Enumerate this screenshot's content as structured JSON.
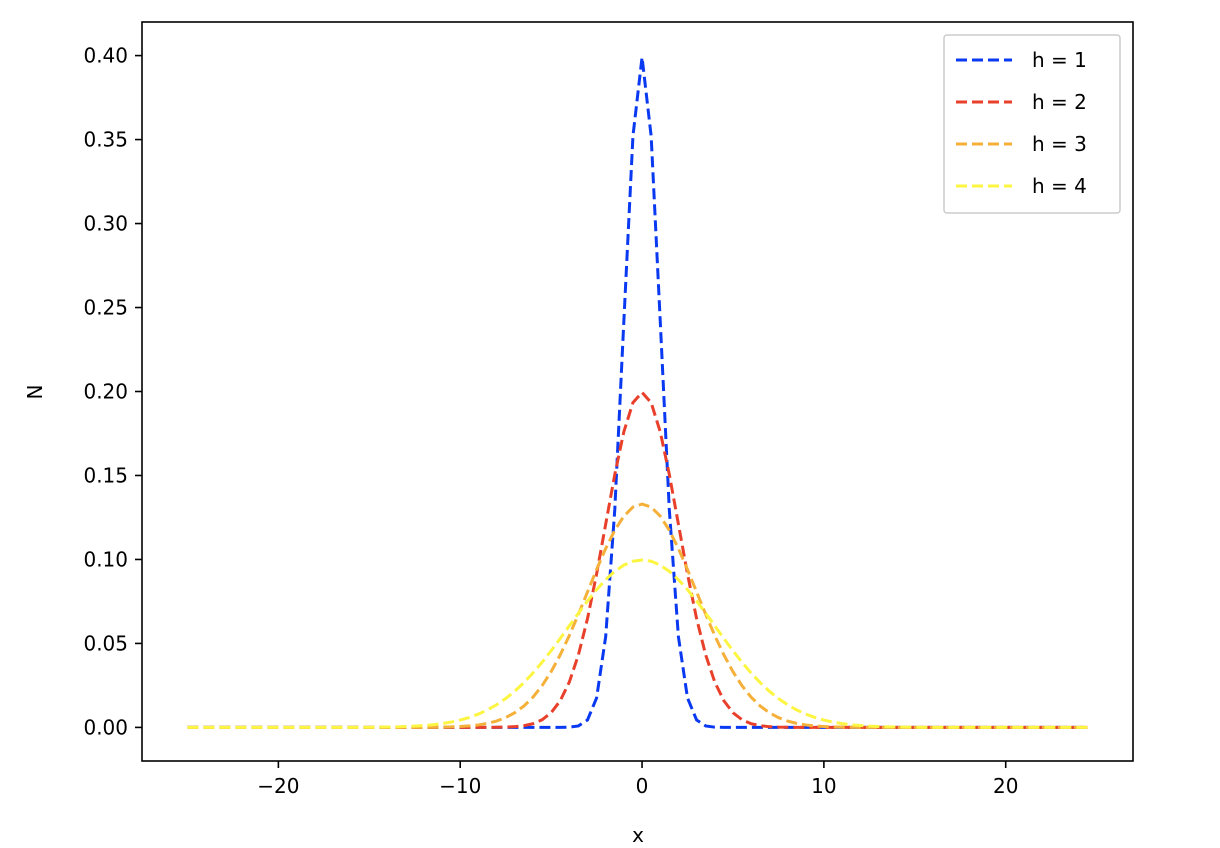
{
  "chart_data": {
    "type": "line",
    "xlabel": "x",
    "ylabel": "N",
    "xlim": [
      -27.5,
      27.0
    ],
    "ylim": [
      -0.02,
      0.42
    ],
    "x_range": [
      -25,
      24.5
    ],
    "x_step": 0.5,
    "grid": false,
    "legend_position": "top-right",
    "x_ticks": [
      {
        "value": -20,
        "label": "−20"
      },
      {
        "value": -10,
        "label": "−10"
      },
      {
        "value": 0,
        "label": "0"
      },
      {
        "value": 10,
        "label": "10"
      },
      {
        "value": 20,
        "label": "20"
      }
    ],
    "y_ticks": [
      {
        "value": 0.0,
        "label": "0.00"
      },
      {
        "value": 0.05,
        "label": "0.05"
      },
      {
        "value": 0.1,
        "label": "0.10"
      },
      {
        "value": 0.15,
        "label": "0.15"
      },
      {
        "value": 0.2,
        "label": "0.20"
      },
      {
        "value": 0.25,
        "label": "0.25"
      },
      {
        "value": 0.3,
        "label": "0.30"
      },
      {
        "value": 0.35,
        "label": "0.35"
      },
      {
        "value": 0.4,
        "label": "0.40"
      }
    ],
    "series": [
      {
        "name": "h = 1",
        "sigma": 1,
        "peak": 0.399,
        "color": "#0a39f2"
      },
      {
        "name": "h = 2",
        "sigma": 2,
        "peak": 0.1995,
        "color": "#e8402a"
      },
      {
        "name": "h = 3",
        "sigma": 3,
        "peak": 0.133,
        "color": "#f5b03a"
      },
      {
        "name": "h = 4",
        "sigma": 4,
        "peak": 0.0997,
        "color": "#fcf542"
      }
    ]
  }
}
